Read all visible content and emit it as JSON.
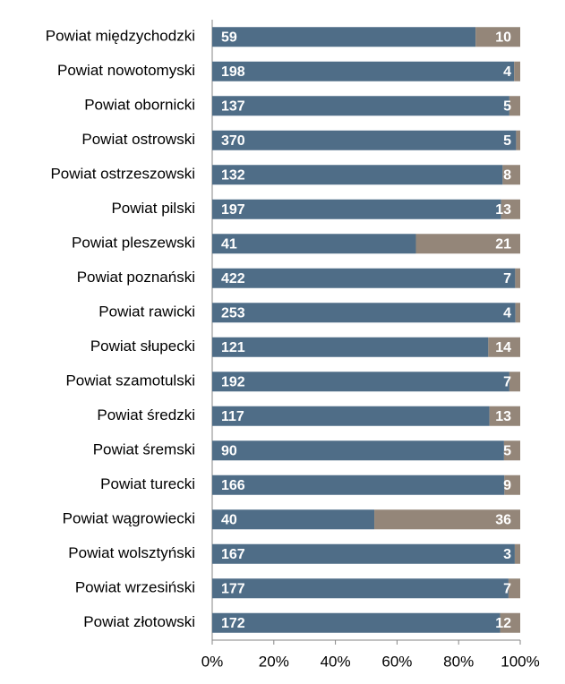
{
  "chart_data": {
    "type": "bar",
    "orientation": "horizontal",
    "stacked": true,
    "normalize": true,
    "categories": [
      "Powiat międzychodzki",
      "Powiat nowotomyski",
      "Powiat obornicki",
      "Powiat ostrowski",
      "Powiat ostrzeszowski",
      "Powiat pilski",
      "Powiat pleszewski",
      "Powiat poznański",
      "Powiat rawicki",
      "Powiat słupecki",
      "Powiat szamotulski",
      "Powiat średzki",
      "Powiat śremski",
      "Powiat turecki",
      "Powiat wągrowiecki",
      "Powiat wolsztyński",
      "Powiat wrzesiński",
      "Powiat złotowski"
    ],
    "series": [
      {
        "color": "#4f6d87",
        "values": [
          59,
          198,
          137,
          370,
          132,
          197,
          41,
          422,
          253,
          121,
          192,
          117,
          90,
          166,
          40,
          167,
          177,
          172
        ]
      },
      {
        "color": "#948679",
        "values": [
          10,
          4,
          5,
          5,
          8,
          13,
          21,
          7,
          4,
          14,
          7,
          13,
          5,
          9,
          36,
          3,
          7,
          12
        ]
      }
    ],
    "xlim": [
      0,
      100
    ],
    "xticks": [
      {
        "value": 0,
        "label": "0%"
      },
      {
        "value": 20,
        "label": "20%"
      },
      {
        "value": 40,
        "label": "40%"
      },
      {
        "value": 60,
        "label": "60%"
      },
      {
        "value": 80,
        "label": "80%"
      },
      {
        "value": 100,
        "label": "100%"
      }
    ]
  }
}
